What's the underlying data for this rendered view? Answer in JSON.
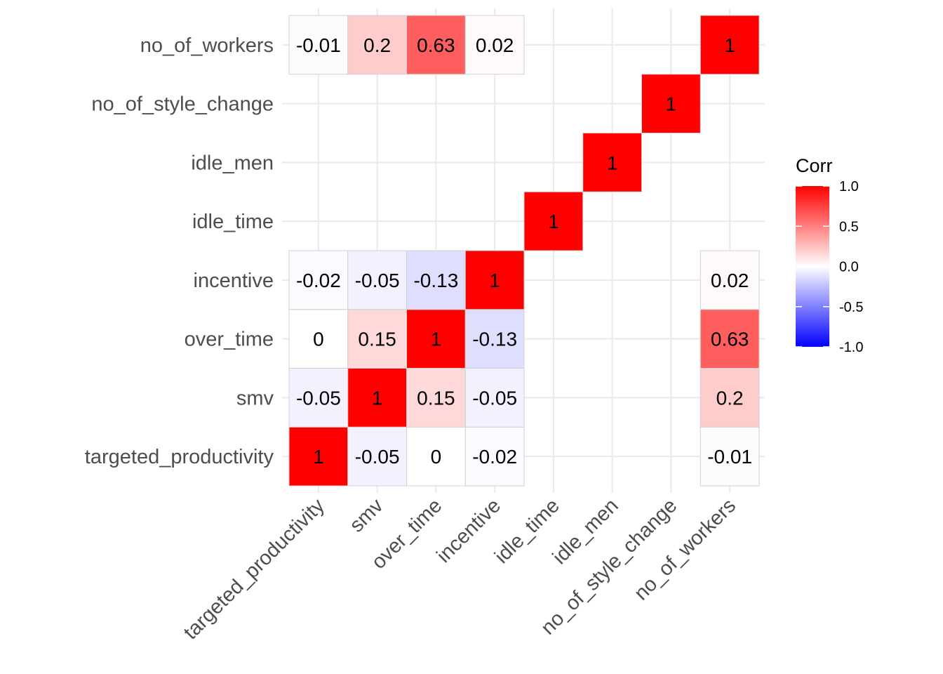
{
  "chart_data": {
    "type": "heatmap",
    "variables": [
      "targeted_productivity",
      "smv",
      "over_time",
      "incentive",
      "idle_time",
      "idle_men",
      "no_of_style_change",
      "no_of_workers"
    ],
    "x_tick_labels": [
      "targeted_productivity",
      "smv",
      "over_time",
      "incentive",
      "idle_time",
      "idle_men",
      "no_of_style_change",
      "no_of_workers"
    ],
    "y_tick_labels": [
      "targeted_productivity",
      "smv",
      "over_time",
      "incentive",
      "idle_time",
      "idle_men",
      "no_of_style_change",
      "no_of_workers"
    ],
    "cells": [
      {
        "x": "targeted_productivity",
        "y": "targeted_productivity",
        "value": 1,
        "label": "1"
      },
      {
        "x": "smv",
        "y": "targeted_productivity",
        "value": -0.05,
        "label": "-0.05"
      },
      {
        "x": "over_time",
        "y": "targeted_productivity",
        "value": 0,
        "label": "0"
      },
      {
        "x": "incentive",
        "y": "targeted_productivity",
        "value": -0.02,
        "label": "-0.02"
      },
      {
        "x": "no_of_workers",
        "y": "targeted_productivity",
        "value": -0.01,
        "label": "-0.01"
      },
      {
        "x": "targeted_productivity",
        "y": "smv",
        "value": -0.05,
        "label": "-0.05"
      },
      {
        "x": "smv",
        "y": "smv",
        "value": 1,
        "label": "1"
      },
      {
        "x": "over_time",
        "y": "smv",
        "value": 0.15,
        "label": "0.15"
      },
      {
        "x": "incentive",
        "y": "smv",
        "value": -0.05,
        "label": "-0.05"
      },
      {
        "x": "no_of_workers",
        "y": "smv",
        "value": 0.2,
        "label": "0.2"
      },
      {
        "x": "targeted_productivity",
        "y": "over_time",
        "value": 0,
        "label": "0"
      },
      {
        "x": "smv",
        "y": "over_time",
        "value": 0.15,
        "label": "0.15"
      },
      {
        "x": "over_time",
        "y": "over_time",
        "value": 1,
        "label": "1"
      },
      {
        "x": "incentive",
        "y": "over_time",
        "value": -0.13,
        "label": "-0.13"
      },
      {
        "x": "no_of_workers",
        "y": "over_time",
        "value": 0.63,
        "label": "0.63"
      },
      {
        "x": "targeted_productivity",
        "y": "incentive",
        "value": -0.02,
        "label": "-0.02"
      },
      {
        "x": "smv",
        "y": "incentive",
        "value": -0.05,
        "label": "-0.05"
      },
      {
        "x": "over_time",
        "y": "incentive",
        "value": -0.13,
        "label": "-0.13"
      },
      {
        "x": "incentive",
        "y": "incentive",
        "value": 1,
        "label": "1"
      },
      {
        "x": "no_of_workers",
        "y": "incentive",
        "value": 0.02,
        "label": "0.02"
      },
      {
        "x": "idle_time",
        "y": "idle_time",
        "value": 1,
        "label": "1"
      },
      {
        "x": "idle_men",
        "y": "idle_men",
        "value": 1,
        "label": "1"
      },
      {
        "x": "no_of_style_change",
        "y": "no_of_style_change",
        "value": 1,
        "label": "1"
      },
      {
        "x": "targeted_productivity",
        "y": "no_of_workers",
        "value": -0.01,
        "label": "-0.01"
      },
      {
        "x": "smv",
        "y": "no_of_workers",
        "value": 0.2,
        "label": "0.2"
      },
      {
        "x": "over_time",
        "y": "no_of_workers",
        "value": 0.63,
        "label": "0.63"
      },
      {
        "x": "incentive",
        "y": "no_of_workers",
        "value": 0.02,
        "label": "0.02"
      },
      {
        "x": "no_of_workers",
        "y": "no_of_workers",
        "value": 1,
        "label": "1"
      }
    ],
    "legend": {
      "title": "Corr",
      "ticks": [
        {
          "value": 1.0,
          "label": "1.0"
        },
        {
          "value": 0.5,
          "label": "0.5"
        },
        {
          "value": 0.0,
          "label": "0.0"
        },
        {
          "value": -0.5,
          "label": "-0.5"
        },
        {
          "value": -1.0,
          "label": "-1.0"
        }
      ],
      "range": [
        -1,
        1
      ],
      "placement": "right"
    },
    "colors": {
      "low": "#0000FF",
      "mid": "#FFFFFF",
      "high": "#FF0000"
    },
    "grid": true
  }
}
